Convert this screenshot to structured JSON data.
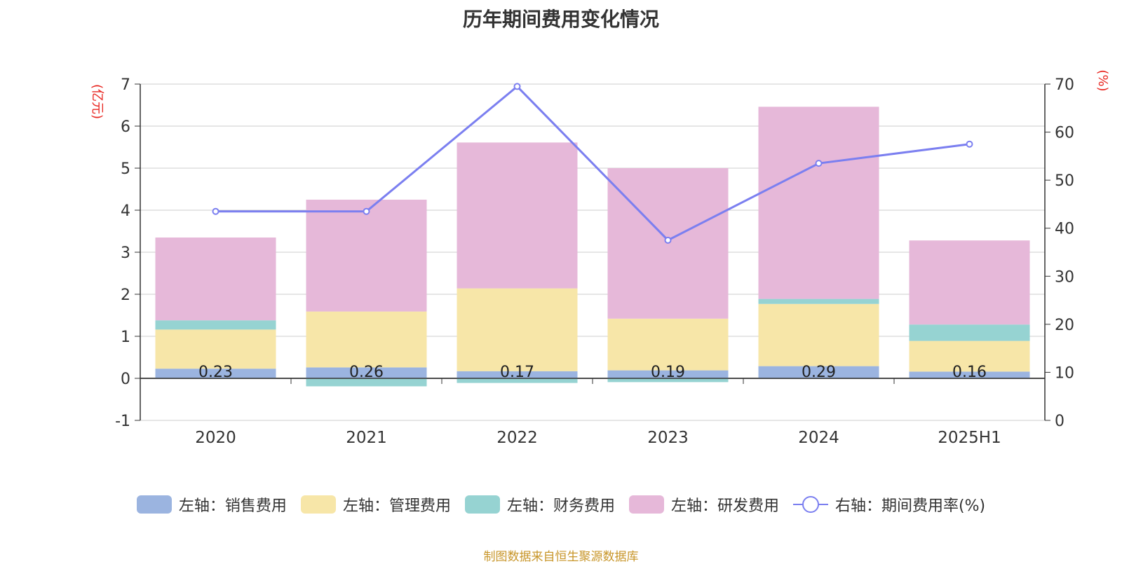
{
  "chart_data": {
    "type": "bar",
    "title": "历年期间费用变化情况",
    "categories": [
      "2020",
      "2021",
      "2022",
      "2023",
      "2024",
      "2025H1"
    ],
    "left_axis": {
      "unit": "(亿元)",
      "ylim": [
        -1,
        7
      ],
      "ticks": [
        -1,
        0,
        1,
        2,
        3,
        4,
        5,
        6,
        7
      ]
    },
    "right_axis": {
      "unit": "(%)",
      "ylim": [
        0,
        70
      ],
      "ticks": [
        0,
        10,
        20,
        30,
        40,
        50,
        60,
        70
      ]
    },
    "series": [
      {
        "name": "左轴：销售费用",
        "axis": "left",
        "stack": true,
        "color": "#9bb4e0",
        "values": [
          0.23,
          0.26,
          0.17,
          0.19,
          0.29,
          0.16
        ],
        "labels": [
          "0.23",
          "0.26",
          "0.17",
          "0.19",
          "0.29",
          "0.16"
        ]
      },
      {
        "name": "左轴：管理费用",
        "axis": "left",
        "stack": true,
        "color": "#f7e6a8",
        "values": [
          0.93,
          1.33,
          1.97,
          1.23,
          1.48,
          0.73
        ]
      },
      {
        "name": "左轴：财务费用",
        "axis": "left",
        "stack": true,
        "color": "#96d3d2",
        "values": [
          0.22,
          -0.19,
          -0.11,
          -0.09,
          0.12,
          0.39
        ]
      },
      {
        "name": "左轴：研发费用",
        "axis": "left",
        "stack": true,
        "color": "#e6b8d9",
        "values": [
          1.97,
          2.66,
          3.47,
          3.58,
          4.57,
          2.0
        ]
      },
      {
        "name": "右轴：期间费用率(%)",
        "axis": "right",
        "type": "line",
        "color": "#7b7ff0",
        "values": [
          43.5,
          43.5,
          69.5,
          37.5,
          53.5,
          57.5
        ]
      }
    ],
    "grid": true,
    "legend_position": "bottom"
  },
  "source_text": "制图数据来自恒生聚源数据库",
  "colors": {
    "left_unit": "#e8251f",
    "right_unit": "#e8251f",
    "axis_text": "#333333",
    "source": "#c8962a"
  }
}
